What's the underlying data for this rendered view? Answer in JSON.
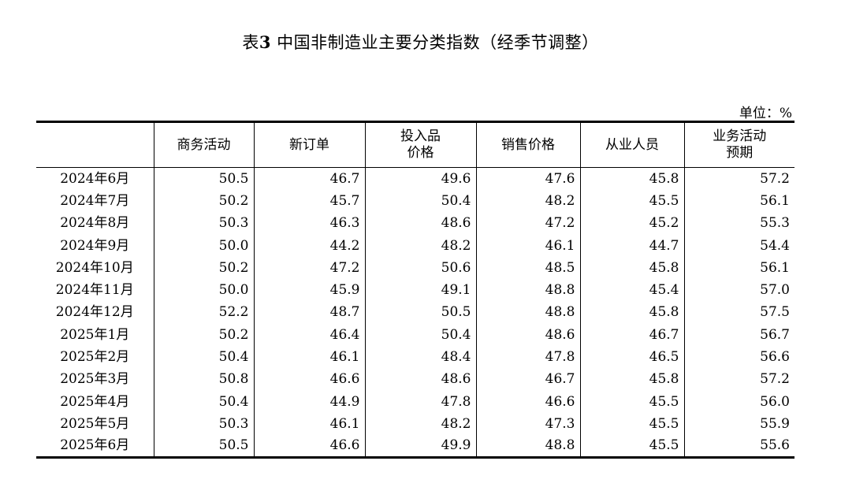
{
  "title": {
    "prefix": "表",
    "number": "3",
    "text": " 中国非制造业主要分类指数（经季节调整）"
  },
  "unit": "单位：%",
  "table": {
    "columns": [
      {
        "line1": "",
        "line2": ""
      },
      {
        "line1": "商务活动",
        "line2": ""
      },
      {
        "line1": "新订单",
        "line2": ""
      },
      {
        "line1": "投入品",
        "line2": "价格"
      },
      {
        "line1": "销售价格",
        "line2": ""
      },
      {
        "line1": "从业人员",
        "line2": ""
      },
      {
        "line1": "业务活动",
        "line2": "预期"
      }
    ],
    "rows": [
      {
        "month": "2024年6月",
        "values": [
          "50.5",
          "46.7",
          "49.6",
          "47.6",
          "45.8",
          "57.2"
        ]
      },
      {
        "month": "2024年7月",
        "values": [
          "50.2",
          "45.7",
          "50.4",
          "48.2",
          "45.5",
          "56.1"
        ]
      },
      {
        "month": "2024年8月",
        "values": [
          "50.3",
          "46.3",
          "48.6",
          "47.2",
          "45.2",
          "55.3"
        ]
      },
      {
        "month": "2024年9月",
        "values": [
          "50.0",
          "44.2",
          "48.2",
          "46.1",
          "44.7",
          "54.4"
        ]
      },
      {
        "month": "2024年10月",
        "values": [
          "50.2",
          "47.2",
          "50.6",
          "48.5",
          "45.8",
          "56.1"
        ]
      },
      {
        "month": "2024年11月",
        "values": [
          "50.0",
          "45.9",
          "49.1",
          "48.8",
          "45.4",
          "57.0"
        ]
      },
      {
        "month": "2024年12月",
        "values": [
          "52.2",
          "48.7",
          "50.5",
          "48.8",
          "45.8",
          "57.5"
        ]
      },
      {
        "month": "2025年1月",
        "values": [
          "50.2",
          "46.4",
          "50.4",
          "48.6",
          "46.7",
          "56.7"
        ]
      },
      {
        "month": "2025年2月",
        "values": [
          "50.4",
          "46.1",
          "48.4",
          "47.8",
          "46.5",
          "56.6"
        ]
      },
      {
        "month": "2025年3月",
        "values": [
          "50.8",
          "46.6",
          "48.6",
          "46.7",
          "45.8",
          "57.2"
        ]
      },
      {
        "month": "2025年4月",
        "values": [
          "50.4",
          "44.9",
          "47.8",
          "46.6",
          "45.5",
          "56.0"
        ]
      },
      {
        "month": "2025年5月",
        "values": [
          "50.3",
          "46.1",
          "48.2",
          "47.3",
          "45.5",
          "55.9"
        ]
      },
      {
        "month": "2025年6月",
        "values": [
          "50.5",
          "46.6",
          "49.9",
          "48.8",
          "45.5",
          "55.6"
        ]
      }
    ]
  }
}
